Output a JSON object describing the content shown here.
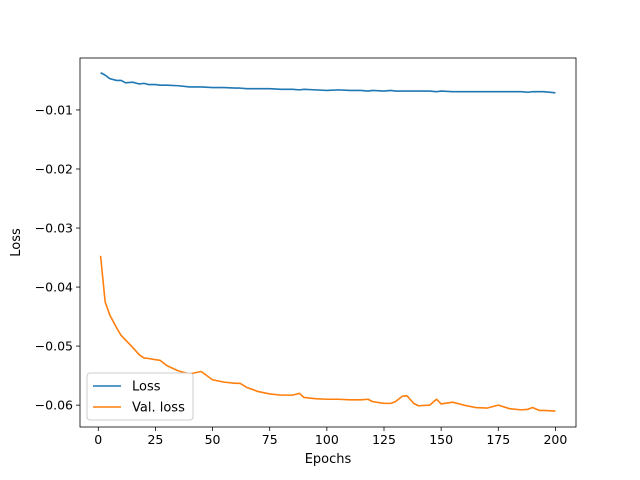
{
  "chart_data": {
    "type": "line",
    "title": "",
    "xlabel": "Epochs",
    "ylabel": "Loss",
    "xlim": [
      -8,
      209
    ],
    "ylim": [
      -0.0637,
      -0.0012
    ],
    "xticks": [
      0,
      25,
      50,
      75,
      100,
      125,
      150,
      175,
      200
    ],
    "yticks": [
      -0.01,
      -0.02,
      -0.03,
      -0.04,
      -0.05,
      -0.06
    ],
    "ytick_labels": [
      "−0.01",
      "−0.02",
      "−0.03",
      "−0.04",
      "−0.05",
      "−0.06"
    ],
    "grid": false,
    "legend_position": "lower-left",
    "x": [
      1,
      3,
      5,
      8,
      10,
      12,
      15,
      18,
      20,
      22,
      25,
      27,
      30,
      35,
      40,
      45,
      50,
      55,
      60,
      62,
      65,
      70,
      75,
      80,
      85,
      88,
      90,
      95,
      100,
      105,
      110,
      115,
      118,
      120,
      125,
      128,
      130,
      133,
      135,
      138,
      140,
      145,
      148,
      150,
      155,
      160,
      165,
      170,
      175,
      180,
      185,
      188,
      190,
      193,
      195,
      200
    ],
    "series": [
      {
        "name": "Loss",
        "color": "#1f77b4",
        "values": [
          -0.0037,
          -0.0041,
          -0.0047,
          -0.005,
          -0.005,
          -0.0054,
          -0.0053,
          -0.0056,
          -0.0055,
          -0.0057,
          -0.0057,
          -0.0058,
          -0.0058,
          -0.0059,
          -0.0061,
          -0.0061,
          -0.0062,
          -0.0062,
          -0.0063,
          -0.0063,
          -0.0064,
          -0.0064,
          -0.0064,
          -0.0065,
          -0.0065,
          -0.0066,
          -0.0065,
          -0.0066,
          -0.0067,
          -0.0066,
          -0.0067,
          -0.0067,
          -0.0068,
          -0.0067,
          -0.0068,
          -0.0067,
          -0.0068,
          -0.0068,
          -0.0068,
          -0.0068,
          -0.0068,
          -0.0068,
          -0.0069,
          -0.0068,
          -0.0069,
          -0.0069,
          -0.0069,
          -0.0069,
          -0.0069,
          -0.0069,
          -0.0069,
          -0.007,
          -0.0069,
          -0.0069,
          -0.0069,
          -0.0071
        ]
      },
      {
        "name": "Val. loss",
        "color": "#ff7f0e",
        "values": [
          -0.0347,
          -0.0425,
          -0.0447,
          -0.0469,
          -0.0482,
          -0.049,
          -0.0502,
          -0.0515,
          -0.052,
          -0.0521,
          -0.0523,
          -0.0524,
          -0.0533,
          -0.0542,
          -0.0547,
          -0.0543,
          -0.0557,
          -0.0561,
          -0.0563,
          -0.0563,
          -0.057,
          -0.0577,
          -0.0581,
          -0.0583,
          -0.0583,
          -0.058,
          -0.0587,
          -0.0589,
          -0.059,
          -0.059,
          -0.0591,
          -0.0591,
          -0.059,
          -0.0594,
          -0.0597,
          -0.0597,
          -0.0594,
          -0.0585,
          -0.0584,
          -0.0597,
          -0.0601,
          -0.06,
          -0.059,
          -0.0598,
          -0.0595,
          -0.06,
          -0.0604,
          -0.0605,
          -0.06,
          -0.0606,
          -0.0608,
          -0.0607,
          -0.0604,
          -0.0609,
          -0.0609,
          -0.061
        ]
      }
    ]
  }
}
